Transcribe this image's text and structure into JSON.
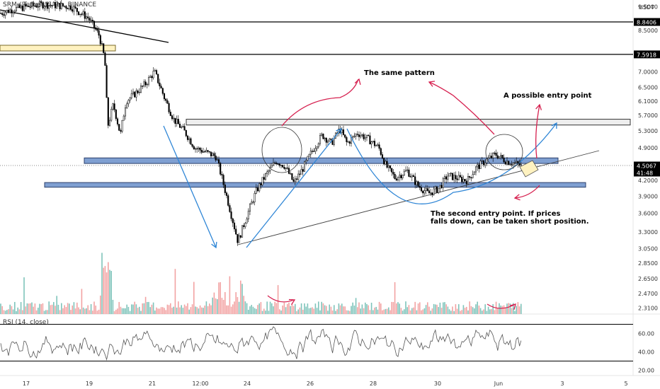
{
  "header": {
    "symbol": "SRM / TetherUS, 1h, BINANCE",
    "currency": "USDT"
  },
  "rsi": {
    "label": "RSI (14, close)",
    "ticks": [
      "60.00",
      "40.00",
      "20.00"
    ]
  },
  "colors": {
    "candle": "#000000",
    "zone_blue": "#7f9fd1",
    "zone_yellow": "#fff2c0",
    "zone_gray": "#eeeeee",
    "arrow_blue": "#2f86d6",
    "arrow_red": "#d6204f",
    "vol_up": "#7fc4bb",
    "vol_down": "#f2a3a3",
    "rsi_line": "#555555"
  },
  "price_axis": {
    "ticks": [
      "9.5000",
      "8.5000",
      "7.0000",
      "6.5000",
      "6.1000",
      "5.7000",
      "5.3000",
      "4.9000",
      "4.2000",
      "3.9000",
      "3.6000",
      "3.3000",
      "3.0500",
      "2.8500",
      "2.6500",
      "2.4700",
      "2.3100"
    ],
    "labels": [
      {
        "text": "8.8406",
        "kind": "level"
      },
      {
        "text": "7.5918",
        "kind": "level"
      },
      {
        "text": "4.5067",
        "kind": "last"
      },
      {
        "text": "41:48",
        "kind": "countdown"
      }
    ]
  },
  "time_axis": {
    "ticks": [
      "17",
      "19",
      "21",
      "12:00",
      "24",
      "26",
      "28",
      "30",
      "Jun",
      "3",
      "5"
    ]
  },
  "annotations": {
    "same_pattern": "The same pattern",
    "entry_point": "A possible entry point",
    "second_entry_1": "The second entry point. If prices",
    "second_entry_2": "falls down, can be taken short position."
  },
  "chart_data": {
    "type": "candlestick",
    "title": "SRM / TetherUS, 1h, BINANCE",
    "y_scale": "log",
    "ylim": [
      2.2,
      9.8
    ],
    "xlabel": "",
    "ylabel": "",
    "grid": false,
    "close_approx": [
      {
        "x": "May 17",
        "y": 9.3
      },
      {
        "x": "May 18",
        "y": 9.5
      },
      {
        "x": "May 19",
        "y": 8.2
      },
      {
        "x": "May 19 12:00",
        "y": 5.4
      },
      {
        "x": "May 20",
        "y": 6.3
      },
      {
        "x": "May 21",
        "y": 6.8
      },
      {
        "x": "May 22",
        "y": 5.3
      },
      {
        "x": "May 23",
        "y": 4.7
      },
      {
        "x": "May 23 12:00",
        "y": 3.1
      },
      {
        "x": "May 24",
        "y": 3.8
      },
      {
        "x": "May 25",
        "y": 4.6
      },
      {
        "x": "May 26",
        "y": 5.1
      },
      {
        "x": "May 27",
        "y": 5.1
      },
      {
        "x": "May 28",
        "y": 4.4
      },
      {
        "x": "May 29",
        "y": 4.2
      },
      {
        "x": "May 30",
        "y": 4.1
      },
      {
        "x": "May 31",
        "y": 4.4
      },
      {
        "x": "Jun 1",
        "y": 4.5
      }
    ],
    "horizontal_levels": [
      8.8406,
      7.5918
    ],
    "last_price": 4.5067,
    "zones": [
      {
        "kind": "resistance",
        "from": 5.45,
        "to": 5.6
      },
      {
        "kind": "support",
        "from": 4.55,
        "to": 4.67
      },
      {
        "kind": "support",
        "from": 4.07,
        "to": 4.16
      }
    ],
    "rsi_levels": [
      70,
      30
    ],
    "rsi_ylim": [
      15,
      75
    ]
  }
}
